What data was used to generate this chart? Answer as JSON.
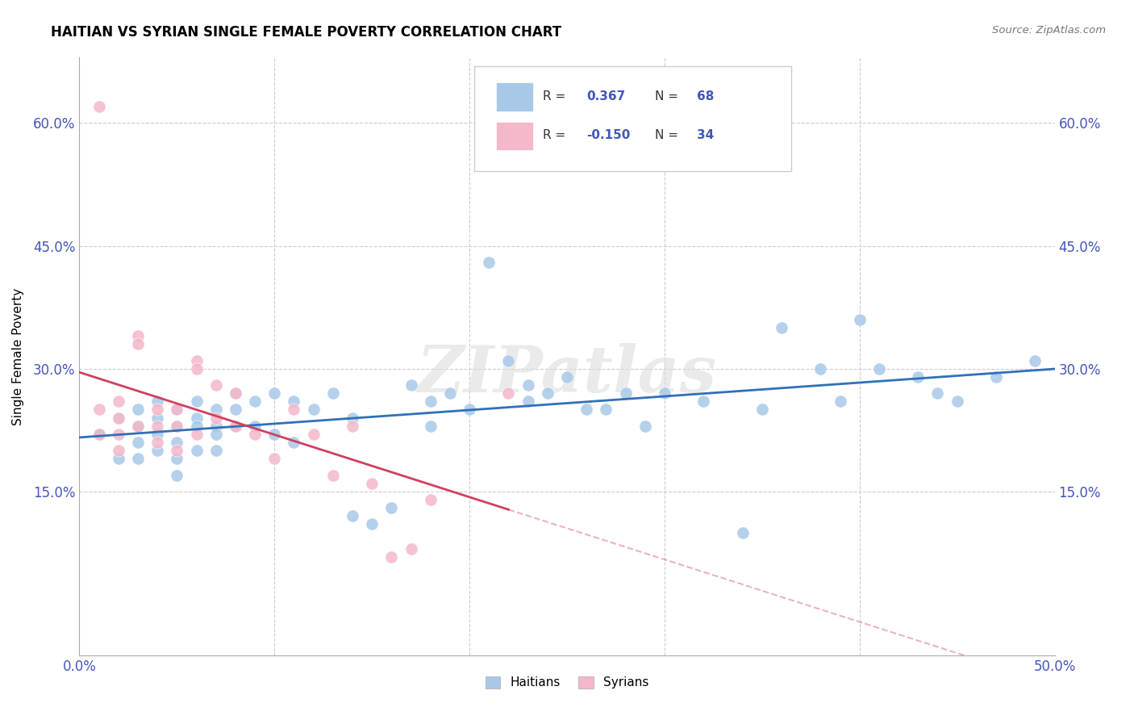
{
  "title": "HAITIAN VS SYRIAN SINGLE FEMALE POVERTY CORRELATION CHART",
  "source": "Source: ZipAtlas.com",
  "ylabel": "Single Female Poverty",
  "watermark": "ZIPatlas",
  "xlim": [
    0.0,
    0.5
  ],
  "ylim": [
    -0.05,
    0.68
  ],
  "xticks": [
    0.0,
    0.1,
    0.2,
    0.3,
    0.4,
    0.5
  ],
  "ytick_positions": [
    0.15,
    0.3,
    0.45,
    0.6
  ],
  "ytick_labels": [
    "15.0%",
    "30.0%",
    "45.0%",
    "60.0%"
  ],
  "haitians_R": 0.367,
  "haitians_N": 68,
  "syrians_R": -0.15,
  "syrians_N": 34,
  "legend_label_haitians": "Haitians",
  "legend_label_syrians": "Syrians",
  "blue_color": "#a8c8e8",
  "pink_color": "#f4b8c8",
  "blue_line_color": "#3070b8",
  "pink_line_color": "#d04060",
  "grid_color": "#cccccc",
  "title_color": "#000000",
  "axis_tick_color": "#4455bb",
  "haitians_x": [
    0.01,
    0.02,
    0.02,
    0.03,
    0.03,
    0.03,
    0.03,
    0.04,
    0.04,
    0.04,
    0.04,
    0.05,
    0.05,
    0.05,
    0.05,
    0.05,
    0.06,
    0.06,
    0.06,
    0.06,
    0.07,
    0.07,
    0.07,
    0.07,
    0.08,
    0.08,
    0.08,
    0.09,
    0.09,
    0.1,
    0.1,
    0.11,
    0.11,
    0.12,
    0.13,
    0.14,
    0.14,
    0.15,
    0.16,
    0.17,
    0.18,
    0.18,
    0.19,
    0.2,
    0.21,
    0.22,
    0.23,
    0.23,
    0.24,
    0.25,
    0.26,
    0.27,
    0.28,
    0.29,
    0.3,
    0.32,
    0.34,
    0.35,
    0.36,
    0.38,
    0.39,
    0.4,
    0.41,
    0.43,
    0.44,
    0.45,
    0.47,
    0.49
  ],
  "haitians_y": [
    0.22,
    0.24,
    0.19,
    0.25,
    0.23,
    0.21,
    0.19,
    0.26,
    0.24,
    0.22,
    0.2,
    0.25,
    0.23,
    0.21,
    0.19,
    0.17,
    0.26,
    0.24,
    0.23,
    0.2,
    0.25,
    0.23,
    0.22,
    0.2,
    0.27,
    0.25,
    0.23,
    0.26,
    0.23,
    0.27,
    0.22,
    0.26,
    0.21,
    0.25,
    0.27,
    0.12,
    0.24,
    0.11,
    0.13,
    0.28,
    0.26,
    0.23,
    0.27,
    0.25,
    0.43,
    0.31,
    0.28,
    0.26,
    0.27,
    0.29,
    0.25,
    0.25,
    0.27,
    0.23,
    0.27,
    0.26,
    0.1,
    0.25,
    0.35,
    0.3,
    0.26,
    0.36,
    0.3,
    0.29,
    0.27,
    0.26,
    0.29,
    0.31
  ],
  "syrians_x": [
    0.01,
    0.01,
    0.01,
    0.02,
    0.02,
    0.02,
    0.02,
    0.03,
    0.03,
    0.03,
    0.04,
    0.04,
    0.04,
    0.05,
    0.05,
    0.05,
    0.06,
    0.06,
    0.06,
    0.07,
    0.07,
    0.08,
    0.08,
    0.09,
    0.1,
    0.11,
    0.12,
    0.13,
    0.14,
    0.15,
    0.16,
    0.17,
    0.18,
    0.22
  ],
  "syrians_y": [
    0.62,
    0.25,
    0.22,
    0.26,
    0.24,
    0.22,
    0.2,
    0.34,
    0.33,
    0.23,
    0.25,
    0.23,
    0.21,
    0.25,
    0.23,
    0.2,
    0.31,
    0.3,
    0.22,
    0.28,
    0.24,
    0.27,
    0.23,
    0.22,
    0.19,
    0.25,
    0.22,
    0.17,
    0.23,
    0.16,
    0.07,
    0.08,
    0.14,
    0.27
  ]
}
